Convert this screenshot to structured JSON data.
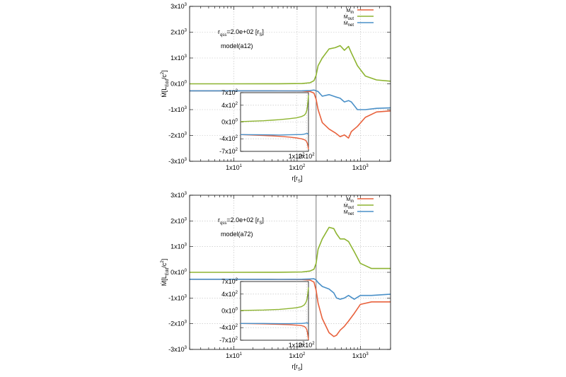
{
  "chart_data": [
    {
      "type": "line",
      "id": "a12",
      "annotations": [
        "r_qss=2.0e+02 [r_S]",
        "model(a12)"
      ],
      "annotation_qss_main": "r",
      "annotation_qss_sub": "qss",
      "annotation_qss_rest": "=2.0e+02 [r",
      "annotation_qss_s": "S",
      "annotation_qss_end": "]",
      "annotation_model": "model(a12)",
      "xlabel": "r[r_S]",
      "ylabel": "Ṁ[L_Edd/c^2]",
      "xscale": "log",
      "xlim": [
        2,
        3000
      ],
      "ylim": [
        -3000,
        3000
      ],
      "xticks": [
        {
          "value": 10,
          "base": "1x10",
          "exp": "1"
        },
        {
          "value": 100,
          "base": "1x10",
          "exp": "2"
        },
        {
          "value": 1000,
          "base": "1x10",
          "exp": "3"
        }
      ],
      "yticks": [
        {
          "value": 3000,
          "base": "3x10",
          "exp": "3"
        },
        {
          "value": 2000,
          "base": "2x10",
          "exp": "3"
        },
        {
          "value": 1000,
          "base": "1x10",
          "exp": "3"
        },
        {
          "value": 0,
          "base": "0x10",
          "exp": "0"
        },
        {
          "value": -1000,
          "base": "-1x10",
          "exp": "3"
        },
        {
          "value": -2000,
          "base": "-2x10",
          "exp": "3"
        },
        {
          "value": -3000,
          "base": "-3x10",
          "exp": "3"
        }
      ],
      "vline_x": 200,
      "grid": true,
      "legend_position": "top-right",
      "series": [
        {
          "name": "Ṁ_in",
          "name_main": "M",
          "name_sub": "in",
          "color": "#e8613c",
          "x": [
            2,
            10,
            50,
            120,
            160,
            185,
            200,
            215,
            250,
            320,
            400,
            480,
            560,
            650,
            720,
            900,
            1200,
            1800,
            3000
          ],
          "y": [
            -270,
            -270,
            -275,
            -280,
            -300,
            -360,
            -600,
            -1000,
            -1500,
            -1750,
            -1900,
            -2050,
            -1980,
            -2100,
            -1850,
            -1650,
            -1300,
            -1090,
            -1050
          ]
        },
        {
          "name": "Ṁ_out",
          "name_main": "M",
          "name_sub": "out",
          "color": "#8db430",
          "x": [
            2,
            10,
            50,
            120,
            160,
            185,
            200,
            215,
            250,
            320,
            400,
            480,
            560,
            650,
            720,
            900,
            1200,
            1800,
            3000
          ],
          "y": [
            0,
            0,
            2,
            10,
            40,
            120,
            330,
            700,
            1000,
            1350,
            1400,
            1480,
            1300,
            1450,
            1200,
            700,
            300,
            150,
            100
          ]
        },
        {
          "name": "Ṁ_net",
          "name_main": "M",
          "name_sub": "net",
          "color": "#4a90c8",
          "x": [
            2,
            10,
            50,
            120,
            160,
            185,
            200,
            215,
            250,
            320,
            400,
            480,
            560,
            650,
            720,
            900,
            1200,
            1800,
            3000
          ],
          "y": [
            -270,
            -270,
            -273,
            -270,
            -260,
            -240,
            -270,
            -300,
            -480,
            -420,
            -500,
            -560,
            -700,
            -650,
            -700,
            -1000,
            -1000,
            -950,
            -930
          ]
        }
      ],
      "inset": {
        "xscale": "log",
        "xlim": [
          2,
          230
        ],
        "ylim": [
          -700,
          700
        ],
        "xticks": [
          {
            "value": 100,
            "base": "1x10",
            "exp": "2"
          },
          {
            "value": 200,
            "base": "2x10",
            "exp": "2"
          }
        ],
        "yticks": [
          {
            "value": 700,
            "base": "7x10",
            "exp": "2"
          },
          {
            "value": 400,
            "base": "4x10",
            "exp": "2"
          },
          {
            "value": 0,
            "base": "0x10",
            "exp": "0"
          },
          {
            "value": -400,
            "base": "-4x10",
            "exp": "2"
          },
          {
            "value": -700,
            "base": "-7x10",
            "exp": "2"
          }
        ],
        "series": [
          {
            "color": "#e8613c",
            "x": [
              2,
              10,
              30,
              60,
              100,
              140,
              170,
              190,
              205,
              215,
              222,
              230
            ],
            "y": [
              -300,
              -320,
              -340,
              -360,
              -380,
              -400,
              -420,
              -440,
              -480,
              -520,
              -580,
              -650
            ]
          },
          {
            "color": "#8db430",
            "x": [
              2,
              10,
              30,
              60,
              100,
              140,
              170,
              190,
              205,
              215,
              222,
              230
            ],
            "y": [
              10,
              30,
              55,
              80,
              100,
              130,
              160,
              200,
              280,
              380,
              500,
              640
            ]
          },
          {
            "color": "#4a90c8",
            "x": [
              2,
              10,
              30,
              60,
              100,
              140,
              170,
              190,
              205,
              215,
              222,
              230
            ],
            "y": [
              -300,
              -305,
              -310,
              -305,
              -300,
              -300,
              -290,
              -280,
              -270,
              -275,
              -290,
              -300
            ]
          }
        ]
      }
    },
    {
      "type": "line",
      "id": "a72",
      "annotations": [
        "r_qss=2.0e+02 [r_S]",
        "model(a72)"
      ],
      "annotation_qss_main": "r",
      "annotation_qss_sub": "qss",
      "annotation_qss_rest": "=2.0e+02 [r",
      "annotation_qss_s": "S",
      "annotation_qss_end": "]",
      "annotation_model": "model(a72)",
      "xlabel": "r[r_S]",
      "ylabel": "Ṁ[L_Edd/c^2]",
      "xscale": "log",
      "xlim": [
        2,
        3000
      ],
      "ylim": [
        -3000,
        3000
      ],
      "xticks": [
        {
          "value": 10,
          "base": "1x10",
          "exp": "1"
        },
        {
          "value": 100,
          "base": "1x10",
          "exp": "2"
        },
        {
          "value": 1000,
          "base": "1x10",
          "exp": "3"
        }
      ],
      "yticks": [
        {
          "value": 3000,
          "base": "3x10",
          "exp": "3"
        },
        {
          "value": 2000,
          "base": "2x10",
          "exp": "3"
        },
        {
          "value": 1000,
          "base": "1x10",
          "exp": "3"
        },
        {
          "value": 0,
          "base": "0x10",
          "exp": "0"
        },
        {
          "value": -1000,
          "base": "-1x10",
          "exp": "3"
        },
        {
          "value": -2000,
          "base": "-2x10",
          "exp": "3"
        },
        {
          "value": -3000,
          "base": "-3x10",
          "exp": "3"
        }
      ],
      "vline_x": 200,
      "grid": true,
      "legend_position": "top-right",
      "series": [
        {
          "name": "Ṁ_in",
          "name_main": "M",
          "name_sub": "in",
          "color": "#e8613c",
          "x": [
            2,
            10,
            50,
            120,
            160,
            185,
            200,
            215,
            250,
            320,
            380,
            420,
            480,
            560,
            650,
            800,
            1000,
            1500,
            3000
          ],
          "y": [
            -270,
            -270,
            -275,
            -280,
            -300,
            -380,
            -700,
            -1200,
            -1800,
            -2350,
            -2500,
            -2450,
            -2250,
            -2100,
            -1900,
            -1600,
            -1250,
            -1150,
            -1150
          ]
        },
        {
          "name": "Ṁ_out",
          "name_main": "M",
          "name_sub": "out",
          "color": "#8db430",
          "x": [
            2,
            10,
            50,
            120,
            160,
            185,
            200,
            215,
            250,
            320,
            380,
            420,
            480,
            560,
            650,
            800,
            1000,
            1500,
            3000
          ],
          "y": [
            0,
            0,
            3,
            15,
            50,
            120,
            350,
            900,
            1300,
            1750,
            1700,
            1500,
            1300,
            1300,
            1200,
            800,
            350,
            150,
            150
          ]
        },
        {
          "name": "Ṁ_net",
          "name_main": "M",
          "name_sub": "net",
          "color": "#4a90c8",
          "x": [
            2,
            10,
            50,
            120,
            160,
            185,
            200,
            215,
            250,
            320,
            380,
            420,
            480,
            560,
            650,
            800,
            1000,
            1500,
            3000
          ],
          "y": [
            -270,
            -270,
            -275,
            -270,
            -260,
            -250,
            -300,
            -400,
            -550,
            -650,
            -800,
            -1000,
            -1050,
            -1000,
            -900,
            -1050,
            -900,
            -900,
            -850
          ]
        }
      ],
      "inset": {
        "xscale": "log",
        "xlim": [
          2,
          230
        ],
        "ylim": [
          -700,
          700
        ],
        "xticks": [
          {
            "value": 100,
            "base": "1x10",
            "exp": "2"
          },
          {
            "value": 200,
            "base": "2x10",
            "exp": "2"
          }
        ],
        "yticks": [
          {
            "value": 700,
            "base": "7x10",
            "exp": "2"
          },
          {
            "value": 400,
            "base": "4x10",
            "exp": "2"
          },
          {
            "value": 0,
            "base": "0x10",
            "exp": "0"
          },
          {
            "value": -400,
            "base": "-4x10",
            "exp": "2"
          },
          {
            "value": -700,
            "base": "-7x10",
            "exp": "2"
          }
        ],
        "series": [
          {
            "color": "#e8613c",
            "x": [
              2,
              10,
              30,
              60,
              100,
              140,
              170,
              190,
              205,
              215,
              222,
              230
            ],
            "y": [
              -300,
              -310,
              -320,
              -330,
              -340,
              -350,
              -370,
              -400,
              -450,
              -520,
              -600,
              -690
            ]
          },
          {
            "color": "#8db430",
            "x": [
              2,
              10,
              30,
              60,
              100,
              140,
              170,
              190,
              205,
              215,
              222,
              230
            ],
            "y": [
              10,
              20,
              35,
              55,
              75,
              100,
              140,
              190,
              260,
              350,
              450,
              560
            ]
          },
          {
            "color": "#4a90c8",
            "x": [
              2,
              10,
              30,
              60,
              100,
              140,
              170,
              190,
              205,
              215,
              222,
              230
            ],
            "y": [
              -300,
              -300,
              -305,
              -305,
              -300,
              -300,
              -295,
              -290,
              -285,
              -290,
              -300,
              -310
            ]
          }
        ]
      }
    }
  ]
}
